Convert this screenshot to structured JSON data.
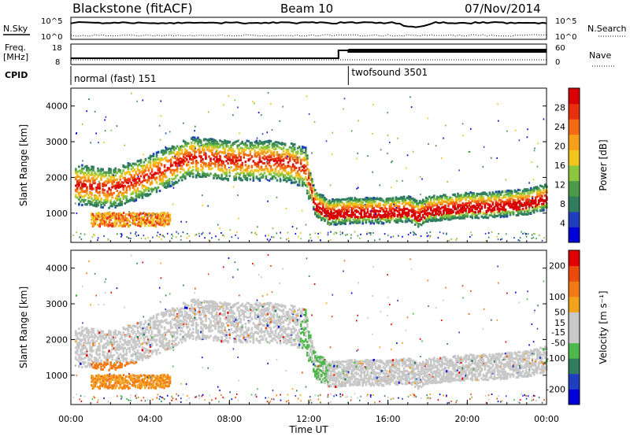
{
  "header": {
    "station": "Blackstone (fitACF)",
    "beam": "Beam 10",
    "date": "07/Nov/2014"
  },
  "summary_panels": {
    "nsky_label": "N.Sky",
    "nsearch_label": "N.Search",
    "freq_label_line1": "Freq.",
    "freq_label_line2": "[MHz]",
    "nave_label": "Nave",
    "cpid_label": "CPID",
    "noise_ticks": [
      "10^5",
      "10^0"
    ],
    "freq_ticks": [
      "18",
      "8"
    ],
    "nave_ticks": [
      "60",
      "0"
    ],
    "cpid_segments": [
      {
        "name": "normal (fast) 151",
        "start_hour": 0,
        "end_hour": 14
      },
      {
        "name": "twofsound 3501",
        "start_hour": 14,
        "end_hour": 24
      }
    ]
  },
  "colors": {
    "power_scale": [
      "#0000d8",
      "#1f3fbf",
      "#2f7d5e",
      "#4a9a4a",
      "#8cc63f",
      "#f2c41c",
      "#f6a01a",
      "#f26a12",
      "#e8300e",
      "#d80000"
    ],
    "velocity_scale": [
      "#0000d8",
      "#1f3fbf",
      "#2f7d5e",
      "#4fb84a",
      "#c8c8c8",
      "#c8c8c8",
      "#f2a31c",
      "#f27a12",
      "#ea4a0e",
      "#e00000"
    ]
  },
  "chart_data": [
    {
      "type": "heatmap",
      "panel": "power",
      "ylabel": "Slant Range [km]",
      "xlim": [
        0,
        24
      ],
      "ylim": [
        180,
        4500
      ],
      "yticks": [
        "1000",
        "2000",
        "3000",
        "4000"
      ],
      "colorbar_label": "Power [dB]",
      "colorbar_ticks": [
        "28",
        "24",
        "20",
        "16",
        "12",
        "8",
        "4"
      ],
      "colorbar_range": [
        0,
        32
      ],
      "main_band_center_km": [
        [
          0.0,
          1850
        ],
        [
          1.0,
          1780
        ],
        [
          2.0,
          1720
        ],
        [
          3.0,
          1900
        ],
        [
          4.0,
          2100
        ],
        [
          5.0,
          2350
        ],
        [
          6.0,
          2600
        ],
        [
          7.0,
          2550
        ],
        [
          8.0,
          2500
        ],
        [
          9.0,
          2500
        ],
        [
          10.0,
          2500
        ],
        [
          11.0,
          2450
        ],
        [
          11.8,
          2300
        ],
        [
          12.3,
          1300
        ],
        [
          13.0,
          1050
        ],
        [
          14.0,
          1100
        ],
        [
          15.0,
          1100
        ],
        [
          16.0,
          1100
        ],
        [
          17.0,
          1150
        ],
        [
          17.5,
          1000
        ],
        [
          18.0,
          1150
        ],
        [
          19.0,
          1200
        ],
        [
          20.0,
          1250
        ],
        [
          21.0,
          1250
        ],
        [
          22.0,
          1300
        ],
        [
          23.0,
          1350
        ],
        [
          24.0,
          1500
        ]
      ],
      "lower_blob": {
        "start_hour": 1.0,
        "end_hour": 5.0,
        "center_km": 850
      }
    },
    {
      "type": "heatmap",
      "panel": "velocity",
      "xlabel": "Time UT",
      "ylabel": "Slant Range [km]",
      "xlim": [
        0,
        24
      ],
      "ylim": [
        180,
        4500
      ],
      "xticks": [
        "00:00",
        "04:00",
        "08:00",
        "12:00",
        "16:00",
        "20:00",
        "00:00"
      ],
      "yticks": [
        "1000",
        "2000",
        "3000",
        "4000"
      ],
      "colorbar_label": "Velocity [m s⁻¹]",
      "colorbar_ticks": [
        "200",
        "100",
        "50",
        "15",
        "-15",
        "-50",
        "-100",
        "-200"
      ],
      "colorbar_range": [
        -250,
        250
      ]
    }
  ]
}
